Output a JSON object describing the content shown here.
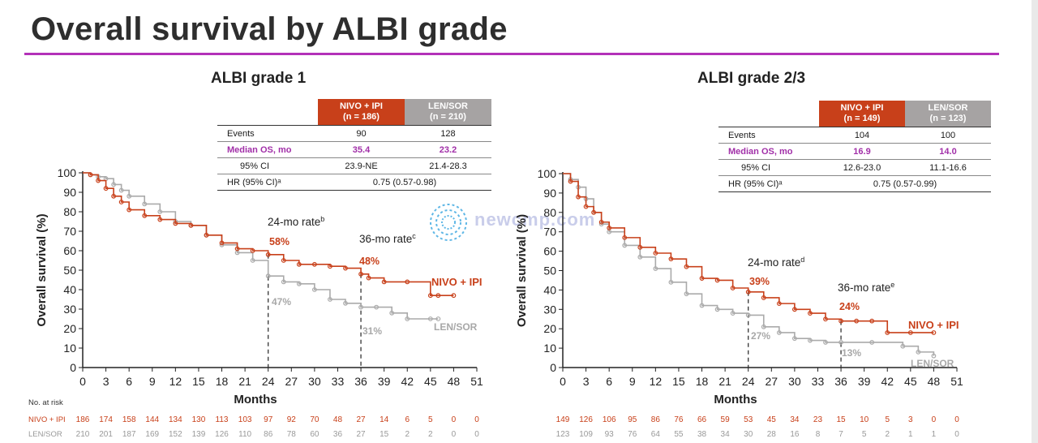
{
  "title": "Overall survival by ALBI grade",
  "watermark": "newcmp.com",
  "colors": {
    "nivo": "#c8401a",
    "len": "#aaaaaa",
    "accent": "#b331b8",
    "median": "#a12fa8"
  },
  "panels": [
    {
      "title": "ALBI grade 1",
      "table": {
        "col_nivo": [
          "NIVO + IPI",
          "(n = 186)"
        ],
        "col_len": [
          "LEN/SOR",
          "(n = 210)"
        ],
        "rows": [
          {
            "label": "Events",
            "nivo": "90",
            "len": "128"
          },
          {
            "label": "Median OS, mo",
            "nivo": "35.4",
            "len": "23.2"
          },
          {
            "label": "95% CI",
            "nivo": "23.9-NE",
            "len": "21.4-28.3"
          },
          {
            "label": "HR (95% CI)ᵃ",
            "span": "0.75 (0.57-0.98)"
          }
        ]
      },
      "annotations": {
        "rate24_label": "24-mo rate",
        "rate24_sup": "b",
        "rate36_label": "36-mo rate",
        "rate36_sup": "c",
        "nivo24": "58%",
        "nivo36": "48%",
        "len24": "47%",
        "len36": "31%",
        "nivo_label": "NIVO + IPI",
        "len_label": "LEN/SOR"
      },
      "risk": {
        "header": "No. at risk",
        "nivo_label": "NIVO + IPI",
        "len_label": "LEN/SOR",
        "nivo": [
          "186",
          "174",
          "158",
          "144",
          "134",
          "130",
          "113",
          "103",
          "97",
          "92",
          "70",
          "48",
          "27",
          "14",
          "6",
          "5",
          "0",
          "0"
        ],
        "len": [
          "210",
          "201",
          "187",
          "169",
          "152",
          "139",
          "126",
          "110",
          "86",
          "78",
          "60",
          "36",
          "27",
          "15",
          "2",
          "2",
          "0",
          "0"
        ]
      }
    },
    {
      "title": "ALBI grade 2/3",
      "table": {
        "col_nivo": [
          "NIVO + IPI",
          "(n = 149)"
        ],
        "col_len": [
          "LEN/SOR",
          "(n = 123)"
        ],
        "rows": [
          {
            "label": "Events",
            "nivo": "104",
            "len": "100"
          },
          {
            "label": "Median OS, mo",
            "nivo": "16.9",
            "len": "14.0"
          },
          {
            "label": "95% CI",
            "nivo": "12.6-23.0",
            "len": "11.1-16.6"
          },
          {
            "label": "HR (95% CI)ᵃ",
            "span": "0.75 (0.57-0.99)"
          }
        ]
      },
      "annotations": {
        "rate24_label": "24-mo rate",
        "rate24_sup": "d",
        "rate36_label": "36-mo rate",
        "rate36_sup": "e",
        "nivo24": "39%",
        "nivo36": "24%",
        "len24": "27%",
        "len36": "13%",
        "nivo_label": "NIVO + IPI",
        "len_label": "LEN/SOR"
      },
      "risk": {
        "nivo": [
          "149",
          "126",
          "106",
          "95",
          "86",
          "76",
          "66",
          "59",
          "53",
          "45",
          "34",
          "23",
          "15",
          "10",
          "5",
          "3",
          "0",
          "0"
        ],
        "len": [
          "123",
          "109",
          "93",
          "76",
          "64",
          "55",
          "38",
          "34",
          "30",
          "28",
          "16",
          "8",
          "7",
          "5",
          "2",
          "1",
          "1",
          "0"
        ]
      }
    }
  ],
  "chart_data": [
    {
      "type": "line",
      "title": "ALBI grade 1",
      "xlabel": "Months",
      "ylabel": "Overall survival (%)",
      "xlim": [
        0,
        51
      ],
      "ylim": [
        0,
        100
      ],
      "xticks": [
        "0",
        "3",
        "6",
        "9",
        "12",
        "15",
        "18",
        "21",
        "24",
        "27",
        "30",
        "33",
        "36",
        "39",
        "42",
        "45",
        "48",
        "51"
      ],
      "yticks": [
        "0",
        "10",
        "20",
        "30",
        "40",
        "50",
        "60",
        "70",
        "80",
        "90",
        "100"
      ],
      "series": [
        {
          "name": "NIVO + IPI",
          "x": [
            0,
            1,
            2,
            3,
            4,
            5,
            6,
            8,
            10,
            12,
            14,
            16,
            18,
            20,
            22,
            24,
            26,
            28,
            30,
            32,
            34,
            36,
            37,
            39,
            42,
            45,
            46,
            48
          ],
          "y": [
            100,
            99,
            96,
            92,
            88,
            85,
            81,
            78,
            76,
            74,
            73,
            68,
            64,
            61,
            60,
            58,
            55,
            53,
            53,
            52,
            51,
            48,
            46,
            44,
            44,
            37,
            37,
            37
          ]
        },
        {
          "name": "LEN/SOR",
          "x": [
            0,
            1,
            2,
            3,
            4,
            5,
            6,
            8,
            10,
            12,
            14,
            16,
            18,
            20,
            22,
            24,
            26,
            28,
            30,
            32,
            34,
            36,
            38,
            40,
            42,
            45,
            46
          ],
          "y": [
            100,
            99,
            98,
            97,
            94,
            91,
            88,
            84,
            80,
            75,
            73,
            68,
            63,
            59,
            55,
            47,
            44,
            43,
            40,
            35,
            33,
            31,
            31,
            28,
            25,
            25,
            25
          ]
        }
      ]
    },
    {
      "type": "line",
      "title": "ALBI grade 2/3",
      "xlabel": "Months",
      "ylabel": "Overall survival (%)",
      "xlim": [
        0,
        51
      ],
      "ylim": [
        0,
        100
      ],
      "xticks": [
        "0",
        "3",
        "6",
        "9",
        "12",
        "15",
        "18",
        "21",
        "24",
        "27",
        "30",
        "33",
        "36",
        "39",
        "42",
        "45",
        "48",
        "51"
      ],
      "yticks": [
        "0",
        "10",
        "20",
        "30",
        "40",
        "50",
        "60",
        "70",
        "80",
        "90",
        "100"
      ],
      "series": [
        {
          "name": "NIVO + IPI",
          "x": [
            0,
            1,
            2,
            3,
            4,
            5,
            6,
            8,
            10,
            12,
            14,
            16,
            18,
            20,
            22,
            24,
            26,
            28,
            30,
            32,
            34,
            36,
            38,
            40,
            42,
            45,
            48
          ],
          "y": [
            100,
            96,
            88,
            83,
            80,
            75,
            72,
            67,
            62,
            59,
            56,
            52,
            46,
            45,
            41,
            39,
            36,
            33,
            30,
            28,
            25,
            24,
            24,
            24,
            18,
            18,
            18
          ]
        },
        {
          "name": "LEN/SOR",
          "x": [
            0,
            1,
            2,
            3,
            4,
            5,
            6,
            8,
            10,
            12,
            14,
            16,
            18,
            20,
            22,
            24,
            26,
            28,
            30,
            32,
            34,
            36,
            40,
            44,
            46,
            48
          ],
          "y": [
            100,
            97,
            93,
            87,
            80,
            74,
            70,
            63,
            57,
            51,
            44,
            38,
            32,
            30,
            28,
            27,
            21,
            18,
            15,
            14,
            13,
            13,
            13,
            11,
            8,
            6
          ]
        }
      ]
    }
  ]
}
